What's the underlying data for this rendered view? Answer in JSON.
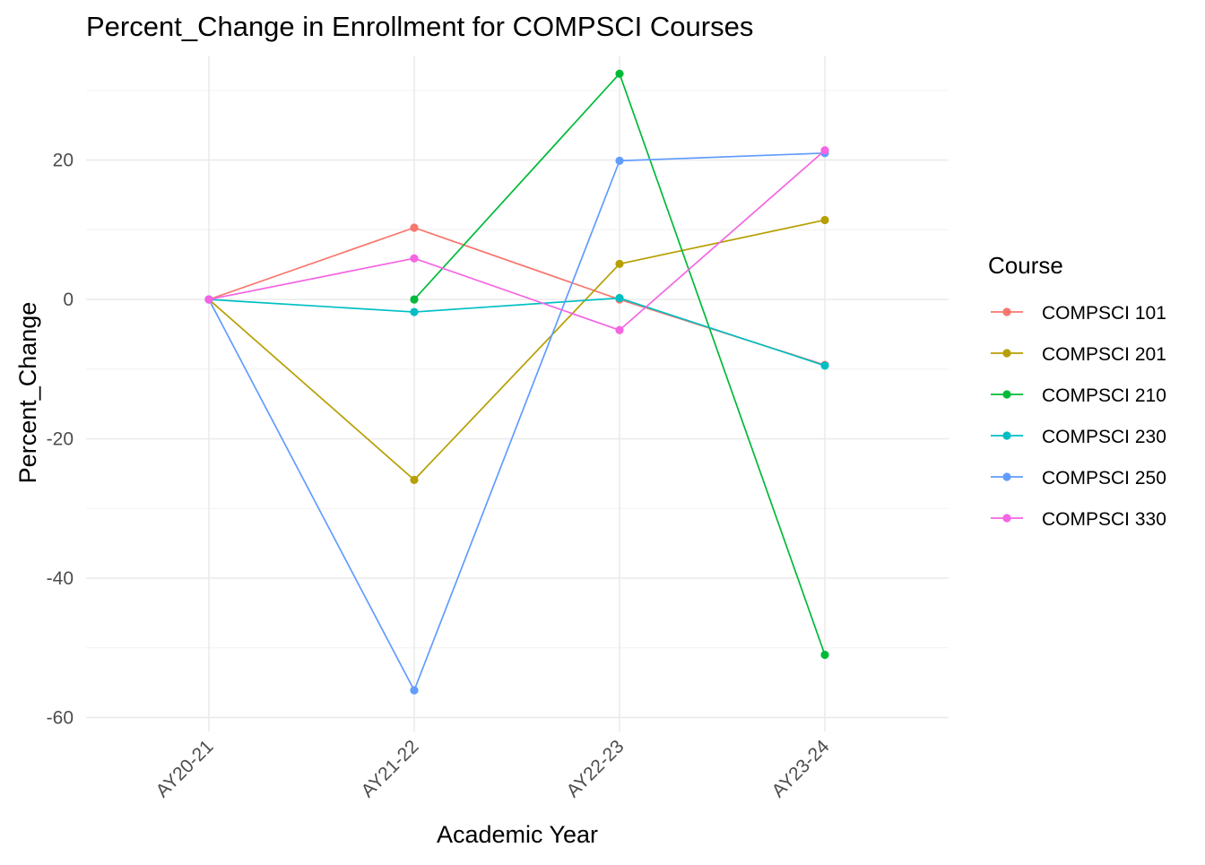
{
  "chart_data": {
    "type": "line",
    "title": "Percent_Change in Enrollment for COMPSCI Courses",
    "xlabel": "Academic Year",
    "ylabel": "Percent_Change",
    "categories": [
      "AY20-21",
      "AY21-22",
      "AY22-23",
      "AY23-24"
    ],
    "ylim": [
      -62,
      35
    ],
    "yticks": [
      -60,
      -40,
      -20,
      0,
      20
    ],
    "grid": true,
    "legend": {
      "title": "Course",
      "position": "right"
    },
    "series": [
      {
        "name": "COMPSCI 101",
        "color": "#F8766D",
        "values": [
          0,
          10.3,
          0,
          -9.4
        ]
      },
      {
        "name": "COMPSCI 201",
        "color": "#B79F00",
        "values": [
          0,
          -25.9,
          5.1,
          11.4
        ]
      },
      {
        "name": "COMPSCI 210",
        "color": "#00BA38",
        "values": [
          null,
          0,
          32.4,
          -51.0
        ]
      },
      {
        "name": "COMPSCI 230",
        "color": "#00BFC4",
        "values": [
          0,
          -1.8,
          0.2,
          -9.5
        ]
      },
      {
        "name": "COMPSCI 250",
        "color": "#619CFF",
        "values": [
          0,
          -56.1,
          19.9,
          21.0
        ]
      },
      {
        "name": "COMPSCI 330",
        "color": "#F564E3",
        "values": [
          0,
          5.9,
          -4.4,
          21.4
        ]
      }
    ]
  }
}
